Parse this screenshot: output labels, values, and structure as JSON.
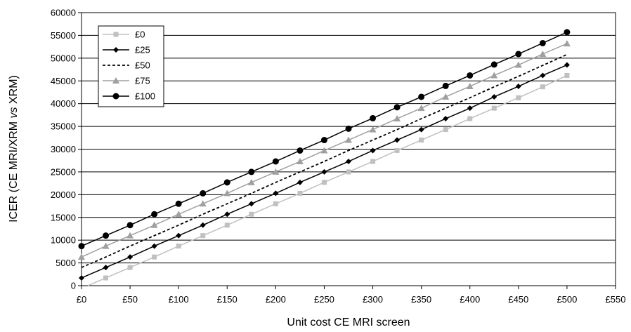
{
  "chart_data": {
    "type": "line",
    "xlabel": "Unit cost CE MRI screen",
    "ylabel": {
      "pre": "ICER (CE MRI/XRM ",
      "italic": "vs",
      "post": " XRM)"
    },
    "xlim": [
      0,
      550
    ],
    "ylim": [
      0,
      60000
    ],
    "x_ticks": [
      0,
      50,
      100,
      150,
      200,
      250,
      300,
      350,
      400,
      450,
      500,
      550
    ],
    "x_tick_labels": [
      "£0",
      "£50",
      "£100",
      "£150",
      "£200",
      "£250",
      "£300",
      "£350",
      "£400",
      "£450",
      "£500",
      "£550"
    ],
    "y_ticks": [
      0,
      5000,
      10000,
      15000,
      20000,
      25000,
      30000,
      35000,
      40000,
      45000,
      50000,
      55000,
      60000
    ],
    "y_tick_labels": [
      "0",
      "5000",
      "10000",
      "15000",
      "20000",
      "25000",
      "30000",
      "35000",
      "40000",
      "45000",
      "50000",
      "55000",
      "60000"
    ],
    "grid": "horizontal",
    "legend_position": "top-left",
    "x": [
      0,
      25,
      50,
      75,
      100,
      125,
      150,
      175,
      200,
      225,
      250,
      275,
      300,
      325,
      350,
      375,
      400,
      425,
      450,
      475,
      500
    ],
    "series": [
      {
        "name": "£0",
        "color": "#c0c0c0",
        "marker": "square",
        "dash": "solid",
        "values": [
          -600,
          1700,
          4000,
          6300,
          8700,
          11000,
          13300,
          15700,
          18000,
          20300,
          22700,
          25000,
          27300,
          29700,
          32000,
          34300,
          36700,
          39000,
          41300,
          43700,
          46200
        ]
      },
      {
        "name": "£25",
        "color": "#000000",
        "marker": "diamond",
        "dash": "solid",
        "values": [
          1700,
          4000,
          6300,
          8700,
          11000,
          13300,
          15700,
          18000,
          20300,
          22700,
          25000,
          27300,
          29700,
          32000,
          34300,
          36700,
          39000,
          41500,
          43800,
          46200,
          48500
        ]
      },
      {
        "name": "£50",
        "color": "#000000",
        "marker": "none",
        "dash": "dashed",
        "values": [
          4000,
          6300,
          8700,
          11000,
          13300,
          15700,
          18000,
          20300,
          22700,
          25000,
          27300,
          29700,
          32000,
          34300,
          36700,
          39000,
          41300,
          43700,
          46000,
          48400,
          50800
        ]
      },
      {
        "name": "£75",
        "color": "#a0a0a0",
        "marker": "triangle",
        "dash": "solid",
        "values": [
          6300,
          8700,
          11000,
          13300,
          15700,
          18000,
          20300,
          22700,
          25000,
          27300,
          29700,
          32000,
          34300,
          36700,
          39000,
          41500,
          43800,
          46200,
          48500,
          50900,
          53200
        ]
      },
      {
        "name": "£100",
        "color": "#000000",
        "marker": "circle",
        "dash": "solid",
        "values": [
          8700,
          11000,
          13300,
          15700,
          18000,
          20300,
          22700,
          25000,
          27300,
          29700,
          32000,
          34500,
          36800,
          39200,
          41500,
          43900,
          46200,
          48600,
          50900,
          53300,
          55700
        ]
      }
    ]
  }
}
